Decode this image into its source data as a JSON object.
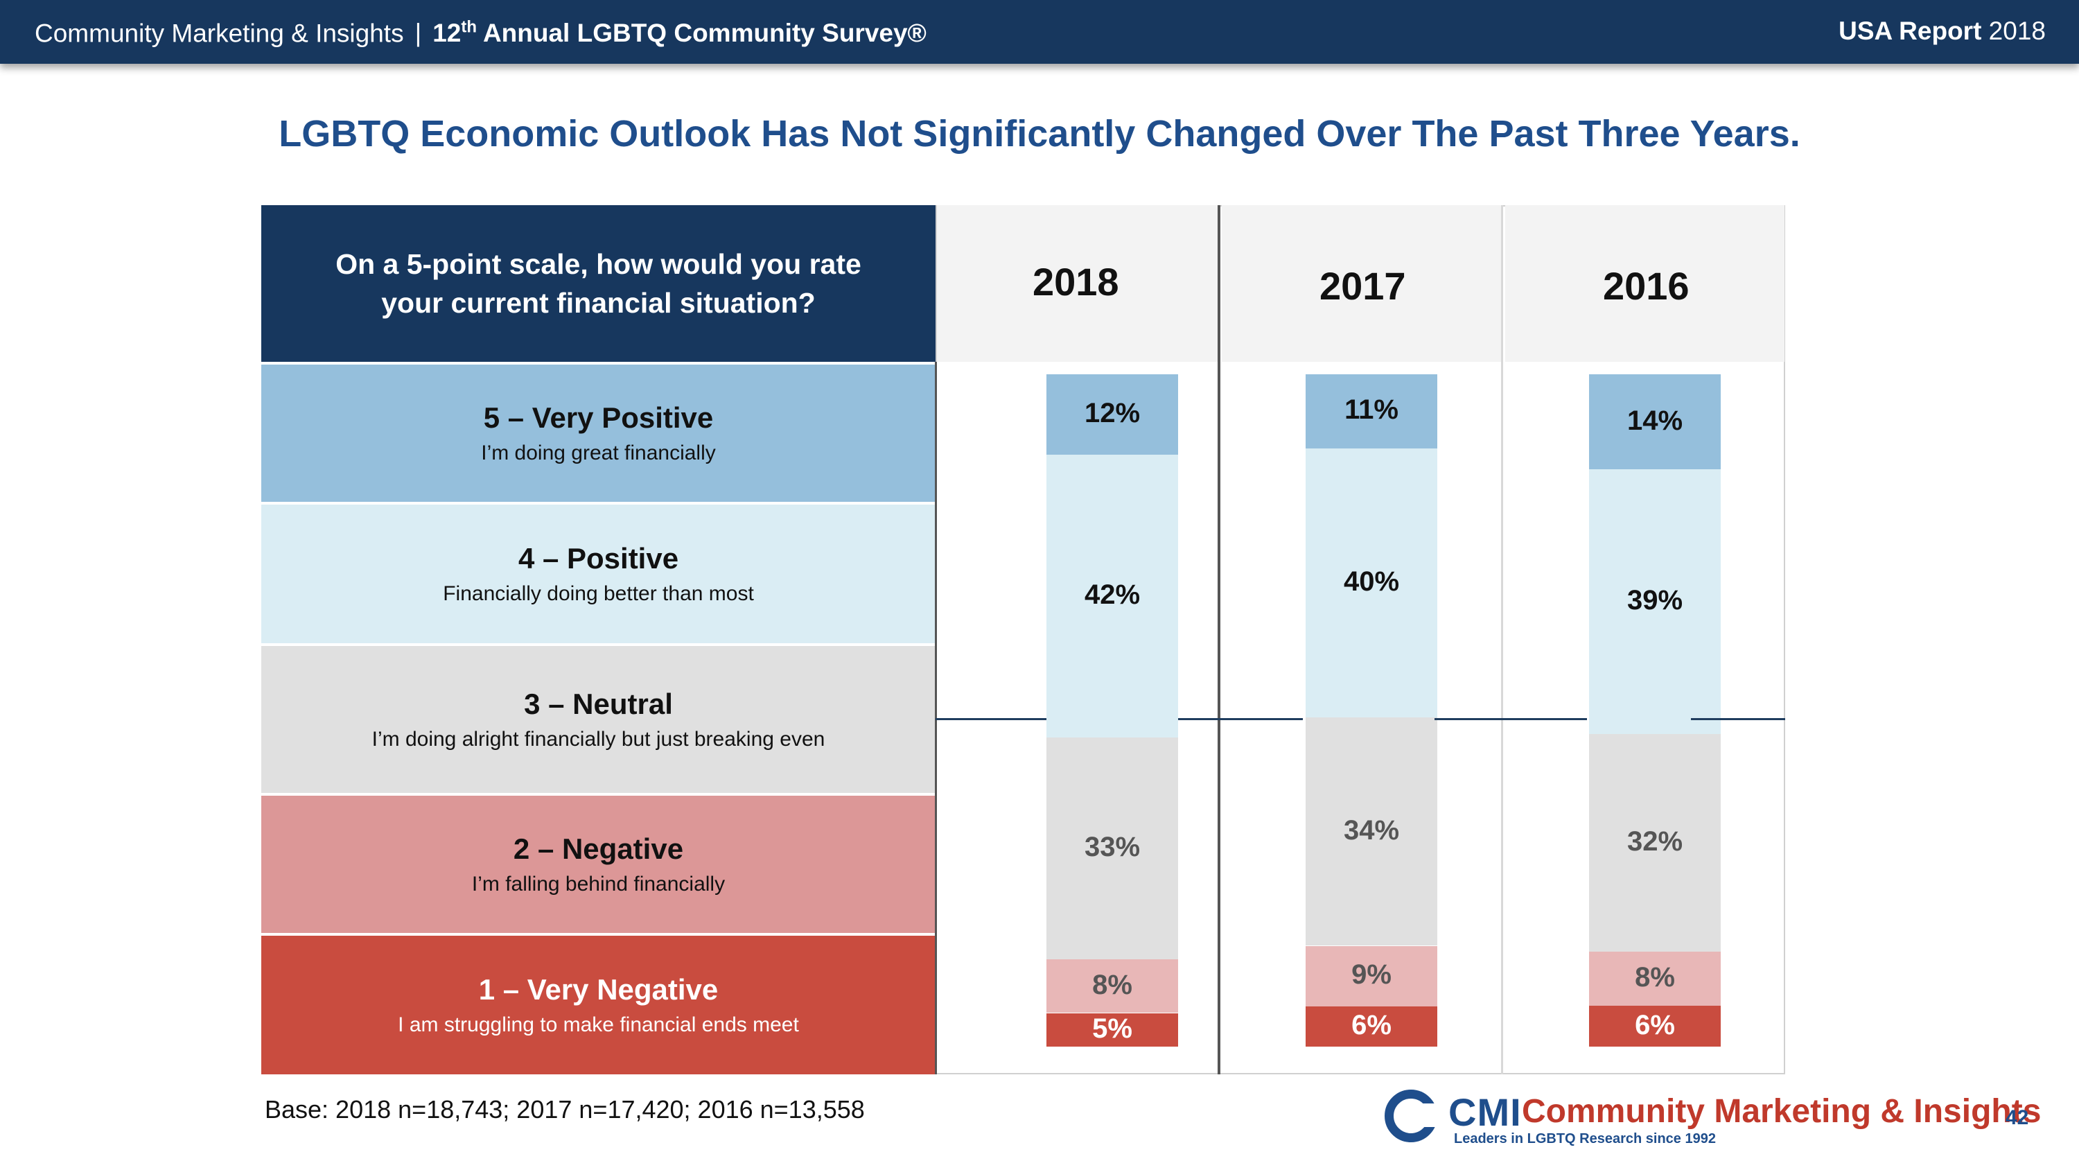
{
  "header": {
    "left_org": "Community Marketing & Insights",
    "separator": "|",
    "survey_prefix": "12",
    "survey_sup": "th",
    "survey_title": " Annual LGBTQ Community Survey®",
    "right_bold": "USA Report",
    "right_year": " 2018"
  },
  "page_title": "LGBTQ Economic Outlook Has Not Significantly Changed Over The Past Three Years.",
  "question": "On a 5-point scale, how would you rate your current financial situation?",
  "categories": [
    {
      "label": "5 – Very Positive",
      "desc": "I’m doing great financially"
    },
    {
      "label": "4 – Positive",
      "desc": "Financially doing better than most"
    },
    {
      "label": "3 – Neutral",
      "desc": "I’m doing alright financially but just breaking even"
    },
    {
      "label": "2 – Negative",
      "desc": "I’m falling behind financially"
    },
    {
      "label": "1 – Very Negative",
      "desc": "I am struggling to make financial ends meet"
    }
  ],
  "chart_data": {
    "type": "bar",
    "stacked": true,
    "categories": [
      "2018",
      "2017",
      "2016"
    ],
    "series": [
      {
        "name": "5 – Very Positive",
        "values": [
          12,
          11,
          14
        ],
        "color": "#95bfdc",
        "label_color": "#111111"
      },
      {
        "name": "4 – Positive",
        "values": [
          42,
          40,
          39
        ],
        "color": "#daedf4",
        "label_color": "#111111"
      },
      {
        "name": "3 – Neutral",
        "values": [
          33,
          34,
          32
        ],
        "color": "#e0e0e0",
        "label_color": "#555555"
      },
      {
        "name": "2 – Negative",
        "values": [
          8,
          9,
          8
        ],
        "color": "#e8b7b7",
        "label_color": "#555555"
      },
      {
        "name": "1 – Very Negative",
        "values": [
          5,
          6,
          6
        ],
        "color": "#c94c3f",
        "label_color": "#ffffff"
      }
    ],
    "value_suffix": "%",
    "ylim": [
      0,
      100
    ]
  },
  "base_note": "Base: 2018 n=18,743; 2017 n=17,420; 2016 n=13,558",
  "logo": {
    "mark": "CMI",
    "name": "Community Marketing & Insights",
    "tagline": "Leaders in LGBTQ Research since 1992"
  },
  "page_number": "42",
  "colors": {
    "navy": "#17375e",
    "title_blue": "#1f4e8c",
    "red": "#c94c3f"
  }
}
